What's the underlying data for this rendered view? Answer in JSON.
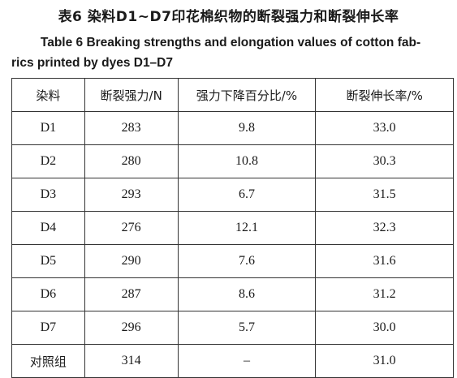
{
  "title_cn": "表6  染料D1~D7印花棉织物的断裂强力和断裂伸长率",
  "title_en_line1": "Table 6   Breaking strengths and elongation values of cotton fab-",
  "title_en_line2": "rics printed by dyes D1–D7",
  "table": {
    "headers": [
      "染料",
      "断裂强力/N",
      "强力下降百分比/%",
      "断裂伸长率/%"
    ],
    "rows": [
      [
        "D1",
        "283",
        "9.8",
        "33.0"
      ],
      [
        "D2",
        "280",
        "10.8",
        "30.3"
      ],
      [
        "D3",
        "293",
        "6.7",
        "31.5"
      ],
      [
        "D4",
        "276",
        "12.1",
        "32.3"
      ],
      [
        "D5",
        "290",
        "7.6",
        "31.6"
      ],
      [
        "D6",
        "287",
        "8.6",
        "31.2"
      ],
      [
        "D7",
        "296",
        "5.7",
        "30.0"
      ],
      [
        "对照组",
        "314",
        "–",
        "31.0"
      ]
    ]
  }
}
